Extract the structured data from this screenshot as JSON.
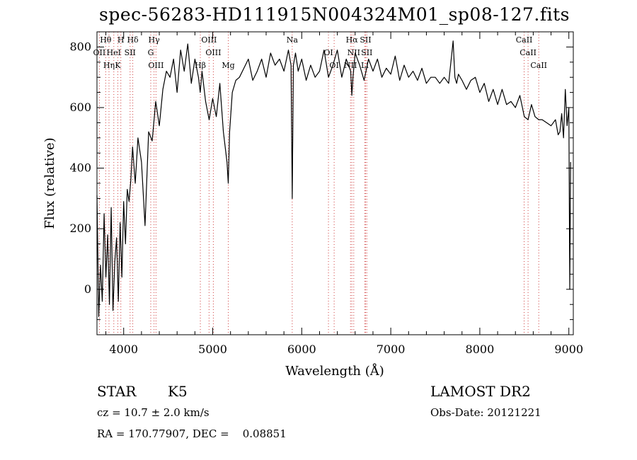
{
  "title": "spec-56283-HD111915N004324M01_sp08-127.fits",
  "info": {
    "class": "STAR",
    "subclass": "K5",
    "cz": "cz = 10.7 ± 2.0 km/s",
    "radec": "RA = 170.77907, DEC =    0.08851",
    "survey": "LAMOST DR2",
    "obsdate": "Obs-Date: 20121221"
  },
  "chart_data": {
    "type": "line",
    "xlabel": "Wavelength (Å)",
    "ylabel": "Flux (relative)",
    "xlim": [
      3700,
      9050
    ],
    "ylim": [
      -150,
      850
    ],
    "xticks": [
      4000,
      5000,
      6000,
      7000,
      8000,
      9000
    ],
    "yticks": [
      0,
      200,
      400,
      600,
      800
    ],
    "series": [
      {
        "x": [
          3700,
          3720,
          3740,
          3760,
          3780,
          3800,
          3820,
          3840,
          3860,
          3880,
          3900,
          3920,
          3940,
          3960,
          3980,
          4000,
          4020,
          4040,
          4060,
          4080,
          4100,
          4130,
          4160,
          4200,
          4240,
          4280,
          4320,
          4360,
          4400,
          4440,
          4480,
          4520,
          4560,
          4600,
          4640,
          4680,
          4720,
          4760,
          4800,
          4840,
          4860,
          4880,
          4920,
          4960,
          5000,
          5040,
          5080,
          5120,
          5160,
          5175,
          5190,
          5220,
          5260,
          5300,
          5350,
          5400,
          5450,
          5500,
          5550,
          5600,
          5650,
          5700,
          5750,
          5800,
          5850,
          5880,
          5893,
          5906,
          5930,
          5960,
          6000,
          6050,
          6100,
          6150,
          6200,
          6250,
          6300,
          6350,
          6400,
          6450,
          6500,
          6550,
          6563,
          6575,
          6600,
          6650,
          6700,
          6750,
          6800,
          6850,
          6900,
          6950,
          7000,
          7050,
          7100,
          7150,
          7200,
          7250,
          7300,
          7350,
          7400,
          7450,
          7500,
          7550,
          7600,
          7650,
          7700,
          7720,
          7740,
          7760,
          7800,
          7850,
          7900,
          7950,
          8000,
          8050,
          8100,
          8150,
          8200,
          8250,
          8300,
          8350,
          8400,
          8450,
          8500,
          8542,
          8580,
          8620,
          8662,
          8700,
          8750,
          8800,
          8850,
          8880,
          8900,
          8920,
          8940,
          8960,
          8980,
          9000,
          9010,
          9020
        ],
        "y": [
          310,
          -90,
          80,
          -40,
          250,
          40,
          180,
          -50,
          270,
          -70,
          90,
          170,
          -40,
          220,
          40,
          290,
          150,
          330,
          290,
          360,
          470,
          350,
          500,
          420,
          210,
          520,
          490,
          620,
          540,
          660,
          720,
          700,
          760,
          650,
          790,
          720,
          810,
          680,
          760,
          700,
          650,
          720,
          620,
          560,
          630,
          570,
          680,
          520,
          420,
          350,
          520,
          650,
          690,
          700,
          730,
          760,
          690,
          720,
          760,
          700,
          780,
          740,
          760,
          720,
          790,
          740,
          300,
          740,
          780,
          720,
          760,
          690,
          740,
          700,
          720,
          790,
          700,
          740,
          790,
          700,
          760,
          720,
          640,
          700,
          780,
          740,
          690,
          760,
          720,
          760,
          700,
          730,
          710,
          770,
          690,
          740,
          700,
          720,
          690,
          730,
          680,
          700,
          700,
          680,
          700,
          680,
          820,
          700,
          680,
          710,
          690,
          660,
          690,
          700,
          650,
          680,
          620,
          660,
          610,
          660,
          610,
          620,
          600,
          640,
          570,
          560,
          610,
          570,
          560,
          560,
          550,
          540,
          560,
          510,
          520,
          580,
          500,
          660,
          540,
          600,
          0,
          420
        ]
      }
    ],
    "lines": [
      {
        "label": "Hθ",
        "w": 3798
      },
      {
        "label": "OII",
        "w": 3727
      },
      {
        "label": "K",
        "w": 3934
      },
      {
        "label": "H",
        "w": 3968
      },
      {
        "label": "HeI",
        "w": 3889
      },
      {
        "label": "Hη",
        "w": 3835
      },
      {
        "label": "Hδ",
        "w": 4102
      },
      {
        "label": "SII",
        "w": 4072
      },
      {
        "label": "OIII",
        "w": 4363
      },
      {
        "label": "Hγ",
        "w": 4341
      },
      {
        "label": "G",
        "w": 4304
      },
      {
        "label": "Hβ",
        "w": 4861
      },
      {
        "label": "OIII",
        "w": 4959
      },
      {
        "label": "OIII",
        "w": 5007
      },
      {
        "label": "Mg",
        "w": 5175
      },
      {
        "label": "Na",
        "w": 5893
      },
      {
        "label": "OI",
        "w": 6300
      },
      {
        "label": "OI",
        "w": 6364
      },
      {
        "label": "Hα",
        "w": 6563
      },
      {
        "label": "NII",
        "w": 6584
      },
      {
        "label": "NII",
        "w": 6548
      },
      {
        "label": "SII",
        "w": 6717
      },
      {
        "label": "SII",
        "w": 6731
      },
      {
        "label": "Li",
        "w": 6708
      },
      {
        "label": "CaII",
        "w": 8498
      },
      {
        "label": "CaII",
        "w": 8542
      },
      {
        "label": "CaII",
        "w": 8662
      }
    ]
  }
}
